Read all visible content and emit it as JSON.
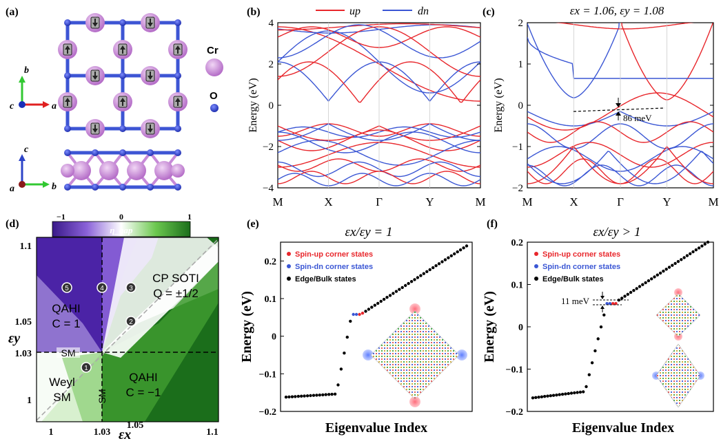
{
  "panels": {
    "a": {
      "label": "(a)",
      "legend": {
        "cr": "Cr",
        "o": "O"
      },
      "axes_top": {
        "c": "c",
        "b": "b",
        "a": "a"
      },
      "axes_bottom": {
        "c": "c",
        "a": "a",
        "b": "b"
      }
    },
    "b": {
      "label": "(b)",
      "legend_up": "up",
      "legend_dn": "dn"
    },
    "c": {
      "label": "(c)",
      "title": "εx = 1.06, εy = 1.08",
      "gap_label": "86 meV"
    },
    "d": {
      "label": "(d)",
      "colorbar_label": "η_gap",
      "cb_ticks": [
        "−1",
        "0",
        "1"
      ],
      "regions": {
        "cp_soti": "CP SOTI",
        "q": "Q = ±1/2",
        "qahi_top": "QAHI",
        "c_top": "C = 1",
        "qahi_bottom": "QAHI",
        "c_bottom": "C = −1",
        "weyl": "Weyl",
        "sm_left": "SM",
        "sm_horiz": "SM",
        "sm_vert": "SM"
      },
      "points": [
        "1",
        "2",
        "3",
        "4",
        "5"
      ],
      "xlabel": "εx",
      "ylabel": "εy",
      "x_ticks": [
        "1",
        "1.03",
        "1.05",
        "1.1"
      ],
      "y_ticks": [
        "1.1",
        "1.05",
        "1.03",
        "1"
      ]
    },
    "e": {
      "label": "(e)",
      "title": "εx/εy = 1",
      "xlabel": "Eigenvalue Index",
      "ylabel": "Energy (eV)",
      "legend": [
        "Spin-up corner states",
        "Spin-dn corner states",
        "Edge/Bulk states"
      ]
    },
    "f": {
      "label": "(f)",
      "title": "εx/εy > 1",
      "xlabel": "Eigenvalue Index",
      "ylabel": "Energy (eV)",
      "gap_label": "11 meV",
      "legend": [
        "Spin-up corner states",
        "Spin-dn corner states",
        "Edge/Bulk states"
      ]
    }
  },
  "chart_data": [
    {
      "type": "line",
      "panel": "b",
      "ylabel": "Energy (eV)",
      "ylim": [
        -4,
        4
      ],
      "yticks": [
        "4",
        "2",
        "0",
        "−2",
        "−4"
      ],
      "xticks": [
        "M",
        "X",
        "Γ",
        "Y",
        "M"
      ],
      "series": [
        {
          "name": "up",
          "color": "#e8262b"
        },
        {
          "name": "dn",
          "color": "#3a56d4"
        }
      ]
    },
    {
      "type": "line",
      "panel": "c",
      "ylabel": "Energy (eV)",
      "ylim": [
        -2,
        2
      ],
      "yticks": [
        "2",
        "1",
        "0",
        "−1",
        "−2"
      ],
      "xticks": [
        "M",
        "X",
        "Γ",
        "Y",
        "M"
      ],
      "series": [
        {
          "name": "up",
          "color": "#e8262b"
        },
        {
          "name": "dn",
          "color": "#3a56d4"
        }
      ]
    },
    {
      "type": "scatter",
      "panel": "e",
      "ylim": [
        -0.2,
        0.25
      ],
      "yticks": [
        "0.2",
        "0.1",
        "0",
        "−0.1",
        "−0.2"
      ]
    },
    {
      "type": "scatter",
      "panel": "f",
      "ylim": [
        -0.2,
        0.2
      ],
      "yticks": [
        "0.2",
        "0.1",
        "0",
        "−0.1",
        "−0.2"
      ]
    }
  ],
  "colors": {
    "up": "#e8262b",
    "dn": "#3a56d4",
    "cr": "#c78ad8",
    "o": "#2d44c8",
    "purple": "#3a1a8a",
    "green": "#1b6e1b"
  }
}
